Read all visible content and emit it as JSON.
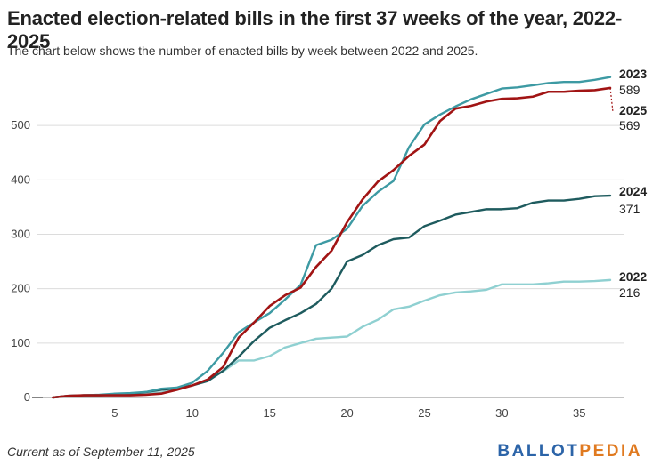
{
  "header": {
    "title": "Enacted election-related bills in the first 37 weeks of the year, 2022-2025",
    "subtitle": "The chart below shows the number of enacted bills by week between 2022 and 2025."
  },
  "footer": {
    "note": "Current as of September 11, 2025",
    "logo_part1": "BALLOT",
    "logo_part2": "PEDIA"
  },
  "colors": {
    "2022": "#8fd0d1",
    "2023": "#3d9aa3",
    "2024": "#1e5b5e",
    "2025": "#a11414",
    "logo_blue": "#2c64a8",
    "logo_orange": "#e07a20"
  },
  "chart_data": {
    "type": "line",
    "x": [
      1,
      2,
      3,
      4,
      5,
      6,
      7,
      8,
      9,
      10,
      11,
      12,
      13,
      14,
      15,
      16,
      17,
      18,
      19,
      20,
      21,
      22,
      23,
      24,
      25,
      26,
      27,
      28,
      29,
      30,
      31,
      32,
      33,
      34,
      35,
      36,
      37
    ],
    "xticks": [
      5,
      10,
      15,
      20,
      25,
      30,
      35
    ],
    "yticks": [
      0,
      100,
      200,
      300,
      400,
      500
    ],
    "ytick_labels": [
      "0",
      "100",
      "200",
      "300",
      "400",
      "500"
    ],
    "xlim": [
      0,
      37
    ],
    "ylim": [
      0,
      600
    ],
    "grid": "horizontal",
    "series": [
      {
        "name": "2022",
        "end_label": "216",
        "values": [
          0,
          3,
          4,
          4,
          5,
          6,
          7,
          9,
          17,
          22,
          33,
          48,
          68,
          68,
          76,
          92,
          100,
          108,
          110,
          112,
          130,
          143,
          162,
          167,
          178,
          188,
          193,
          195,
          198,
          208,
          208,
          208,
          210,
          213,
          213,
          214,
          216
        ]
      },
      {
        "name": "2023",
        "end_label": "589",
        "values": [
          0,
          3,
          4,
          5,
          7,
          8,
          10,
          16,
          18,
          27,
          49,
          82,
          120,
          138,
          155,
          180,
          207,
          280,
          290,
          310,
          352,
          378,
          398,
          460,
          502,
          520,
          535,
          548,
          558,
          568,
          570,
          574,
          578,
          580,
          580,
          584,
          589
        ]
      },
      {
        "name": "2024",
        "end_label": "371",
        "values": [
          0,
          3,
          4,
          4,
          5,
          6,
          10,
          14,
          17,
          22,
          30,
          49,
          75,
          104,
          128,
          142,
          155,
          172,
          200,
          250,
          262,
          280,
          291,
          294,
          315,
          325,
          336,
          341,
          346,
          346,
          348,
          358,
          362,
          362,
          365,
          370,
          371
        ]
      },
      {
        "name": "2025",
        "end_label": "569",
        "values": [
          0,
          3,
          4,
          4,
          4,
          4,
          5,
          7,
          14,
          22,
          33,
          56,
          110,
          138,
          168,
          188,
          202,
          240,
          270,
          322,
          364,
          397,
          418,
          444,
          465,
          508,
          531,
          536,
          544,
          549,
          550,
          553,
          562,
          562,
          564,
          565,
          569
        ]
      }
    ]
  }
}
